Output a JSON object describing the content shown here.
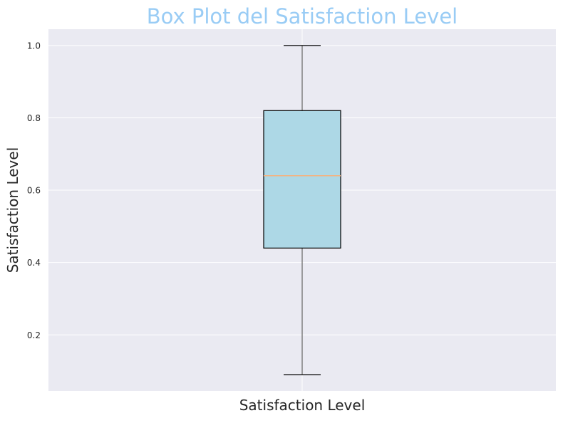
{
  "chart_data": {
    "type": "box",
    "title": "Box Plot del Satisfaction Level",
    "xlabel": "Satisfaction Level",
    "ylabel": "Satisfaction Level",
    "ylim": [
      0.045,
      1.045
    ],
    "yticks": [
      0.2,
      0.4,
      0.6,
      0.8,
      1.0
    ],
    "ytick_labels": [
      "0.2",
      "0.4",
      "0.6",
      "0.8",
      "1.0"
    ],
    "grid": true,
    "box": {
      "whisker_low": 0.09,
      "q1": 0.44,
      "median": 0.64,
      "q3": 0.82,
      "whisker_high": 1.0
    },
    "colors": {
      "title": "#99ccf5",
      "plot_background": "#eaeaf2",
      "grid": "#ffffff",
      "box_fill": "#add8e6",
      "box_edge": "#000000",
      "median": "#f5b27f",
      "whisker": "#808080",
      "cap": "#000000",
      "text": "#262626"
    }
  }
}
